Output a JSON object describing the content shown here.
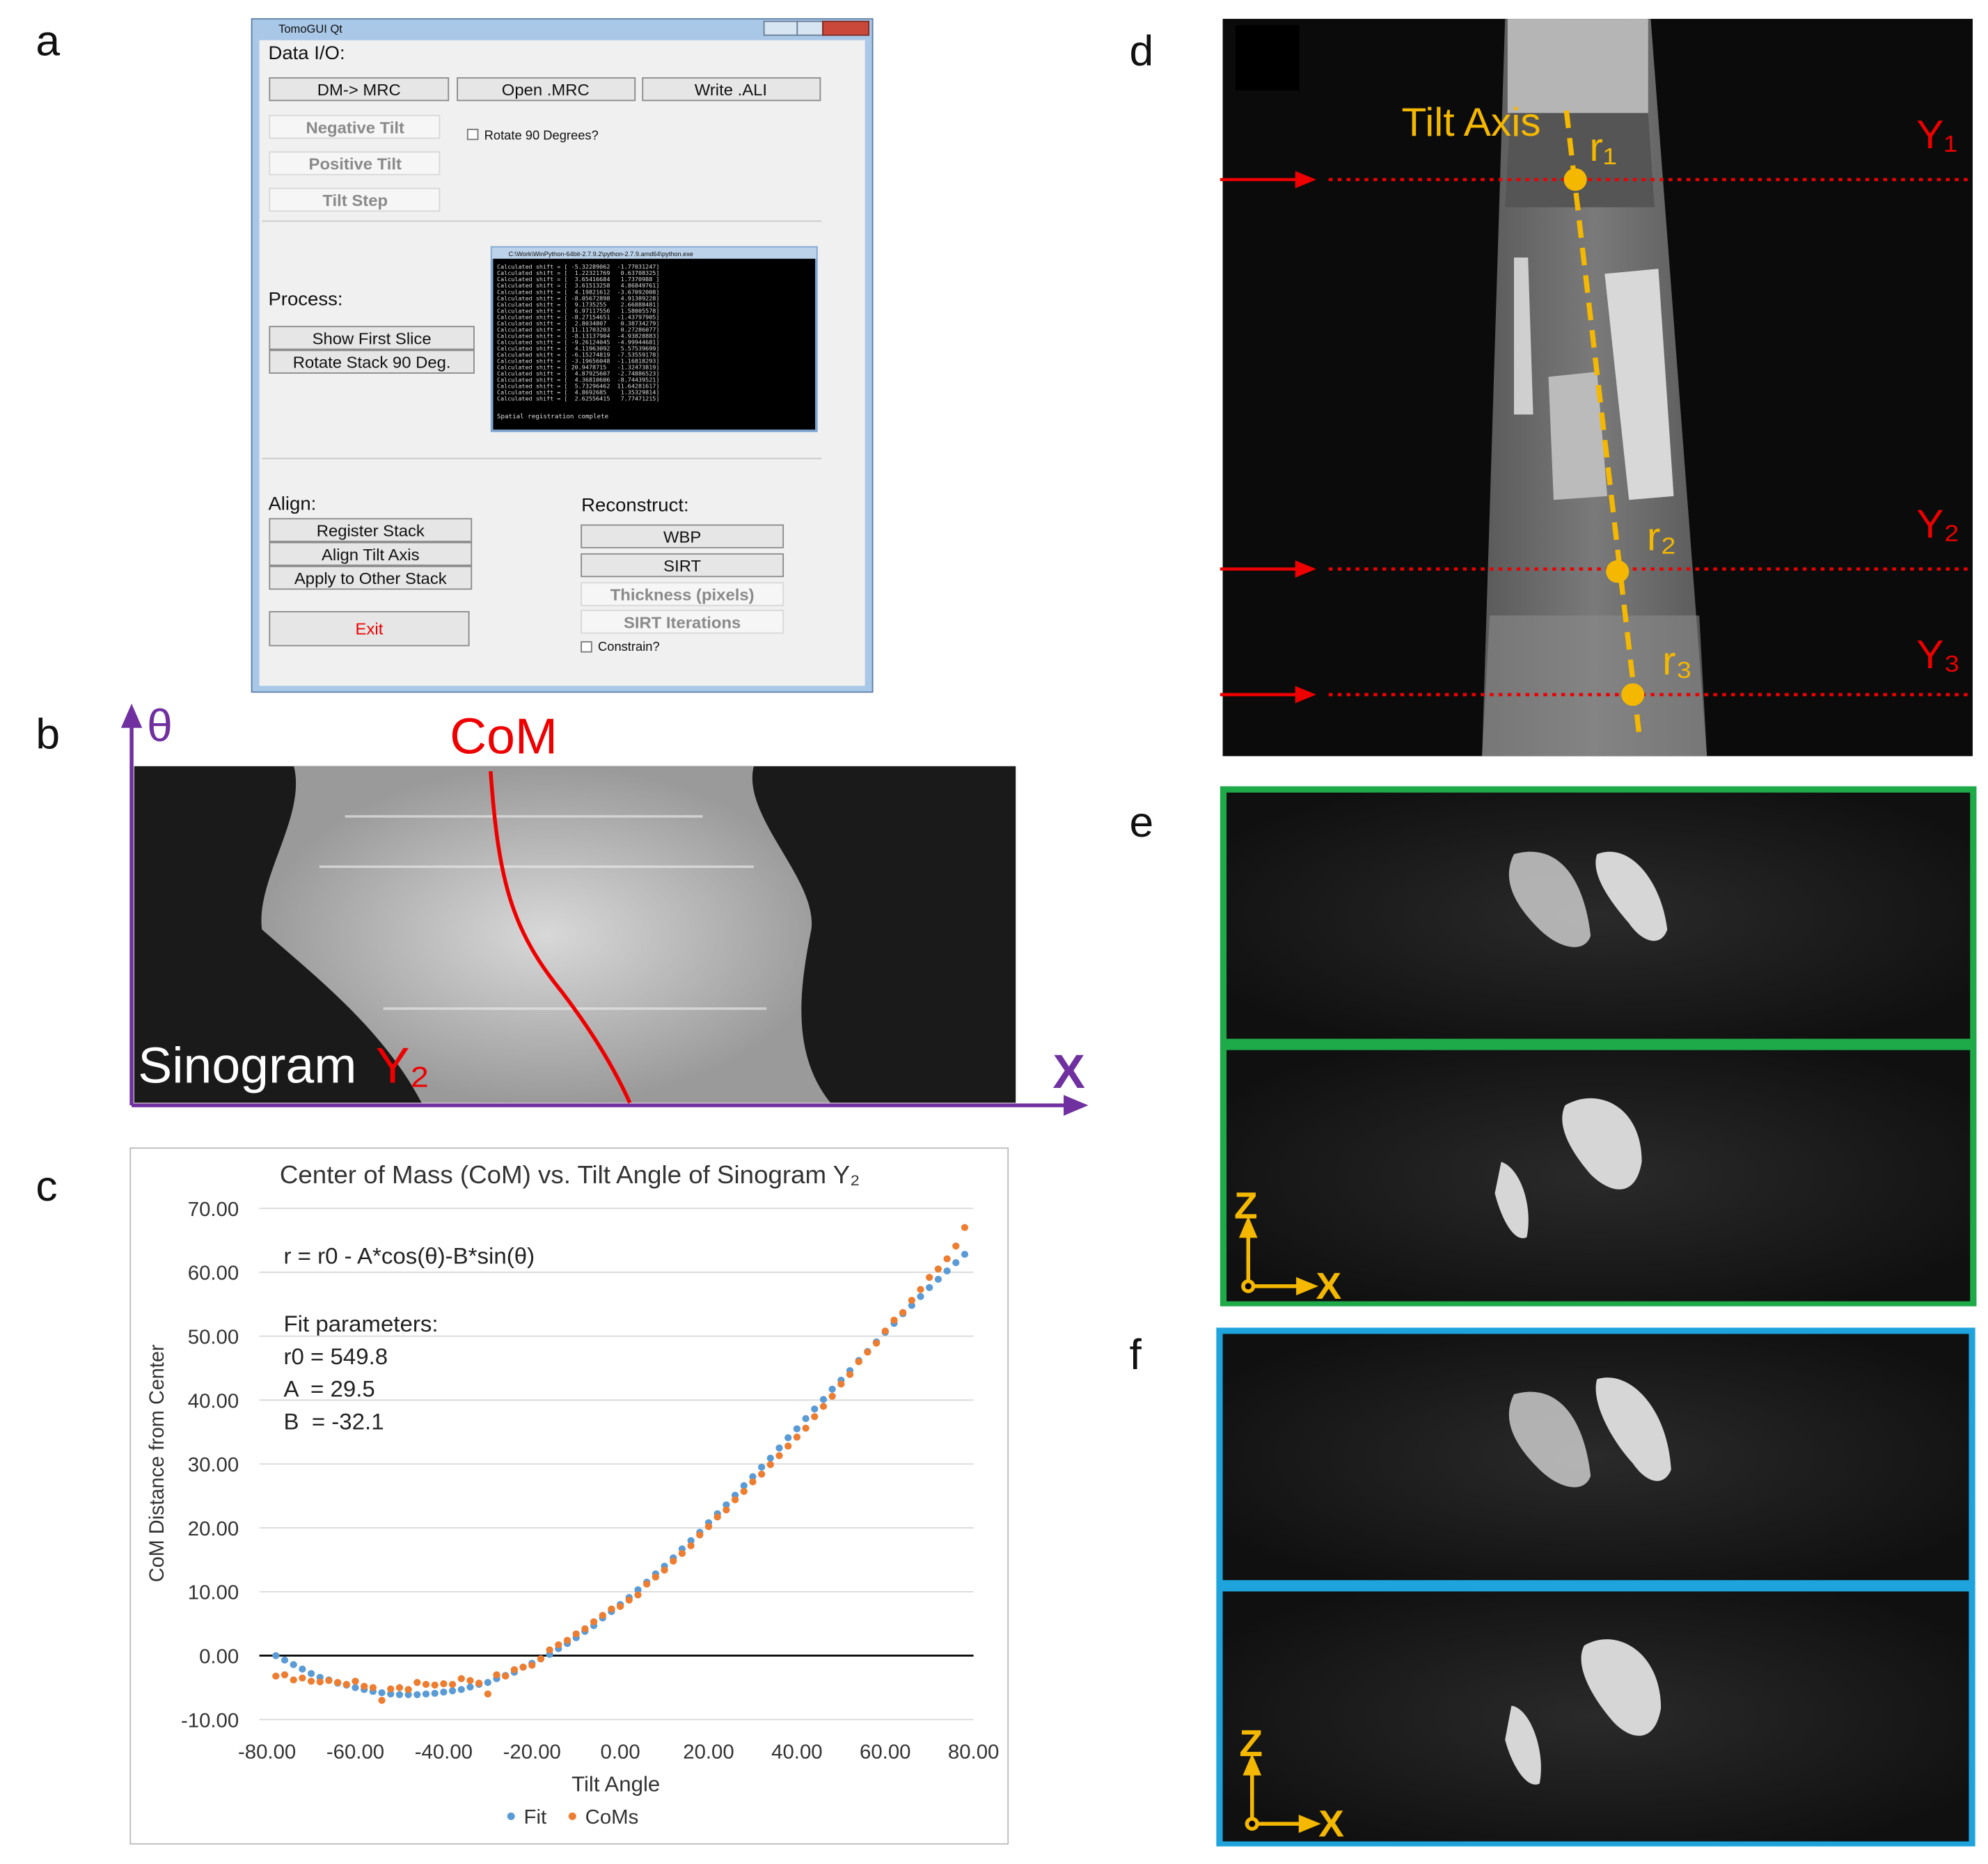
{
  "panels": {
    "a": "a",
    "b": "b",
    "c": "c",
    "d": "d",
    "e": "e",
    "f": "f"
  },
  "gui": {
    "window_title": "TomoGUI Qt",
    "data_io": "Data I/O:",
    "dm_mrc": "DM-> MRC",
    "open_mrc": "Open .MRC",
    "write_ali": "Write .ALI",
    "negative_tilt": "Negative Tilt",
    "positive_tilt": "Positive Tilt",
    "tilt_step": "Tilt Step",
    "rotate_check": "Rotate 90 Degrees?",
    "process": "Process:",
    "show_first": "Show First Slice",
    "rotate_stack": "Rotate Stack 90 Deg.",
    "align": "Align:",
    "register": "Register Stack",
    "align_tilt": "Align Tilt Axis",
    "apply_other": "Apply to Other Stack",
    "exit": "Exit",
    "reconstruct": "Reconstruct:",
    "wbp": "WBP",
    "sirt": "SIRT",
    "thickness": "Thickness (pixels)",
    "sirt_iter": "SIRT Iterations",
    "constrain": "Constrain?",
    "console_title": "C:\\Work\\WinPython-64bit-2.7.9.2\\python-2.7.9.amd64\\python.exe",
    "console_lines": [
      "Calculated shift = [ -5.32289062  -1.77031247]",
      "Calculated shift = [  1.22321769   0.63708325]",
      "Calculated shift = [  3.65416684   1.7370988 ]",
      "Calculated shift = [  3.61513258   4.86849761]",
      "Calculated shift = [  4.19821612  -3.67092008]",
      "Calculated shift = [ -8.05672898   4.91389228]",
      "Calculated shift = [  9.1735255    2.66888481]",
      "Calculated shift = [  6.97117556   1.58005578]",
      "Calculated shift = [ -8.27154651  -1.43797905]",
      "Calculated shift = [  2.8034807    0.38734279]",
      "Calculated shift = [ 11.11703203   0.27286077]",
      "Calculated shift = [ -8.13137904  -4.93828883]",
      "Calculated shift = [ -9.26124045  -4.99944681]",
      "Calculated shift = [  4.11963092   5.57539699]",
      "Calculated shift = [ -6.15274819  -7.53559178]",
      "Calculated shift = [ -3.19656048  -1.16818293]",
      "Calculated shift = [ 20.9478715   -1.32473819]",
      "Calculated shift = [  4.87925607  -2.74886523]",
      "Calculated shift = [  4.36810606  -8.74439521]",
      "Calculated shift = [  5.73296462  11.64281617]",
      "Calculated shift = [  4.8692685    1.35329814]",
      "Calculated shift = [  2.62556415   7.77471215]"
    ],
    "console_done": "Spatial registration complete"
  },
  "sinogram": {
    "theta": "θ",
    "com": "CoM",
    "x": "X",
    "label": "Sinogram",
    "y2": "Y₂"
  },
  "tilt_image": {
    "tilt_axis": "Tilt Axis",
    "r1": "r₁",
    "r2": "r₂",
    "r3": "r₃",
    "y1": "Y₁",
    "y2": "Y₂",
    "y3": "Y₃"
  },
  "recon_e": {
    "z": "Z",
    "x": "X"
  },
  "recon_f": {
    "z": "Z",
    "x": "X"
  },
  "chart_data": {
    "type": "scatter",
    "title": "Center of Mass (CoM) vs. Tilt Angle of Sinogram Y₂",
    "x_label": "Tilt Angle",
    "y_label": "CoM Distance from Center",
    "annotations": [
      "r = r0 - A*cos(θ)-B*sin(θ)",
      "Fit parameters:",
      "r0 = 549.8",
      "A  = 29.5",
      "B  = -32.1"
    ],
    "x": [
      -78,
      -76,
      -74,
      -72,
      -70,
      -68,
      -66,
      -64,
      -62,
      -60,
      -58,
      -56,
      -54,
      -52,
      -50,
      -48,
      -46,
      -44,
      -42,
      -40,
      -38,
      -36,
      -34,
      -32,
      -30,
      -28,
      -26,
      -24,
      -22,
      -20,
      -18,
      -16,
      -14,
      -12,
      -10,
      -8,
      -6,
      -4,
      -2,
      0,
      2,
      4,
      6,
      8,
      10,
      12,
      14,
      16,
      18,
      20,
      22,
      24,
      26,
      28,
      30,
      32,
      34,
      36,
      38,
      40,
      42,
      44,
      46,
      48,
      50,
      52,
      54,
      56,
      58,
      60,
      62,
      64,
      66,
      68,
      70,
      72,
      74,
      76,
      78
    ],
    "series": [
      {
        "name": "Fit",
        "color": "#5b9bd5",
        "values": [
          0.0,
          -0.7,
          -1.4,
          -2.1,
          -2.8,
          -3.4,
          -3.8,
          -4.3,
          -4.6,
          -5.0,
          -5.3,
          -5.6,
          -5.8,
          -6.0,
          -6.1,
          -6.1,
          -6.1,
          -6.0,
          -5.9,
          -5.7,
          -5.5,
          -5.3,
          -4.9,
          -4.5,
          -4.2,
          -3.6,
          -3.1,
          -2.6,
          -1.8,
          -1.2,
          -0.5,
          0.2,
          1.1,
          1.9,
          2.8,
          3.8,
          4.7,
          5.9,
          6.9,
          8.0,
          9.1,
          10.3,
          11.5,
          12.8,
          14.0,
          15.3,
          16.7,
          18.0,
          19.3,
          20.8,
          22.2,
          23.6,
          25.1,
          26.6,
          28.0,
          29.5,
          30.9,
          32.5,
          34.1,
          35.5,
          37.1,
          38.6,
          40.1,
          41.7,
          43.1,
          44.6,
          46.2,
          47.6,
          49.1,
          50.6,
          52.0,
          53.5,
          54.8,
          56.2,
          57.6,
          58.9,
          60.2,
          61.5,
          62.8
        ]
      },
      {
        "name": "CoMs",
        "color": "#ed7d31",
        "values": [
          -3.2,
          -3.0,
          -3.8,
          -3.5,
          -4.0,
          -4.1,
          -3.9,
          -4.2,
          -4.5,
          -4.0,
          -4.8,
          -5.0,
          -7.0,
          -5.2,
          -5.0,
          -5.3,
          -4.2,
          -4.5,
          -4.6,
          -4.4,
          -4.5,
          -3.6,
          -3.9,
          -4.3,
          -6.0,
          -3.0,
          -3.2,
          -2.2,
          -1.8,
          -1.5,
          -0.5,
          0.9,
          1.7,
          2.4,
          3.4,
          4.2,
          5.3,
          6.3,
          7.3,
          7.7,
          8.7,
          9.5,
          11.2,
          12.3,
          13.4,
          14.8,
          16.0,
          17.2,
          18.9,
          20.2,
          21.7,
          22.8,
          24.4,
          25.7,
          27.2,
          28.4,
          29.9,
          31.3,
          32.8,
          34.2,
          35.6,
          37.4,
          39.0,
          40.6,
          42.5,
          44.0,
          46.0,
          47.5,
          48.9,
          50.8,
          52.5,
          53.7,
          55.6,
          57.3,
          59.2,
          60.5,
          62.1,
          64.1,
          67.0
        ]
      }
    ],
    "xlim": [
      -80,
      80
    ],
    "ylim": [
      -10,
      70
    ],
    "xticks": [
      {
        "value": -80,
        "label": "-80.00"
      },
      {
        "value": -60,
        "label": "-60.00"
      },
      {
        "value": -40,
        "label": "-40.00"
      },
      {
        "value": -20,
        "label": "-20.00"
      },
      {
        "value": 0,
        "label": "0.00"
      },
      {
        "value": 20,
        "label": "20.00"
      },
      {
        "value": 40,
        "label": "40.00"
      },
      {
        "value": 60,
        "label": "60.00"
      },
      {
        "value": 80,
        "label": "80.00"
      }
    ],
    "yticks": [
      {
        "value": -10,
        "label": "-10.00"
      },
      {
        "value": 0,
        "label": "0.00"
      },
      {
        "value": 10,
        "label": "10.00"
      },
      {
        "value": 20,
        "label": "20.00"
      },
      {
        "value": 30,
        "label": "30.00"
      },
      {
        "value": 40,
        "label": "40.00"
      },
      {
        "value": 50,
        "label": "50.00"
      },
      {
        "value": 60,
        "label": "60.00"
      },
      {
        "value": 70,
        "label": "70.00"
      }
    ],
    "grid": true,
    "legend": "bottom"
  }
}
